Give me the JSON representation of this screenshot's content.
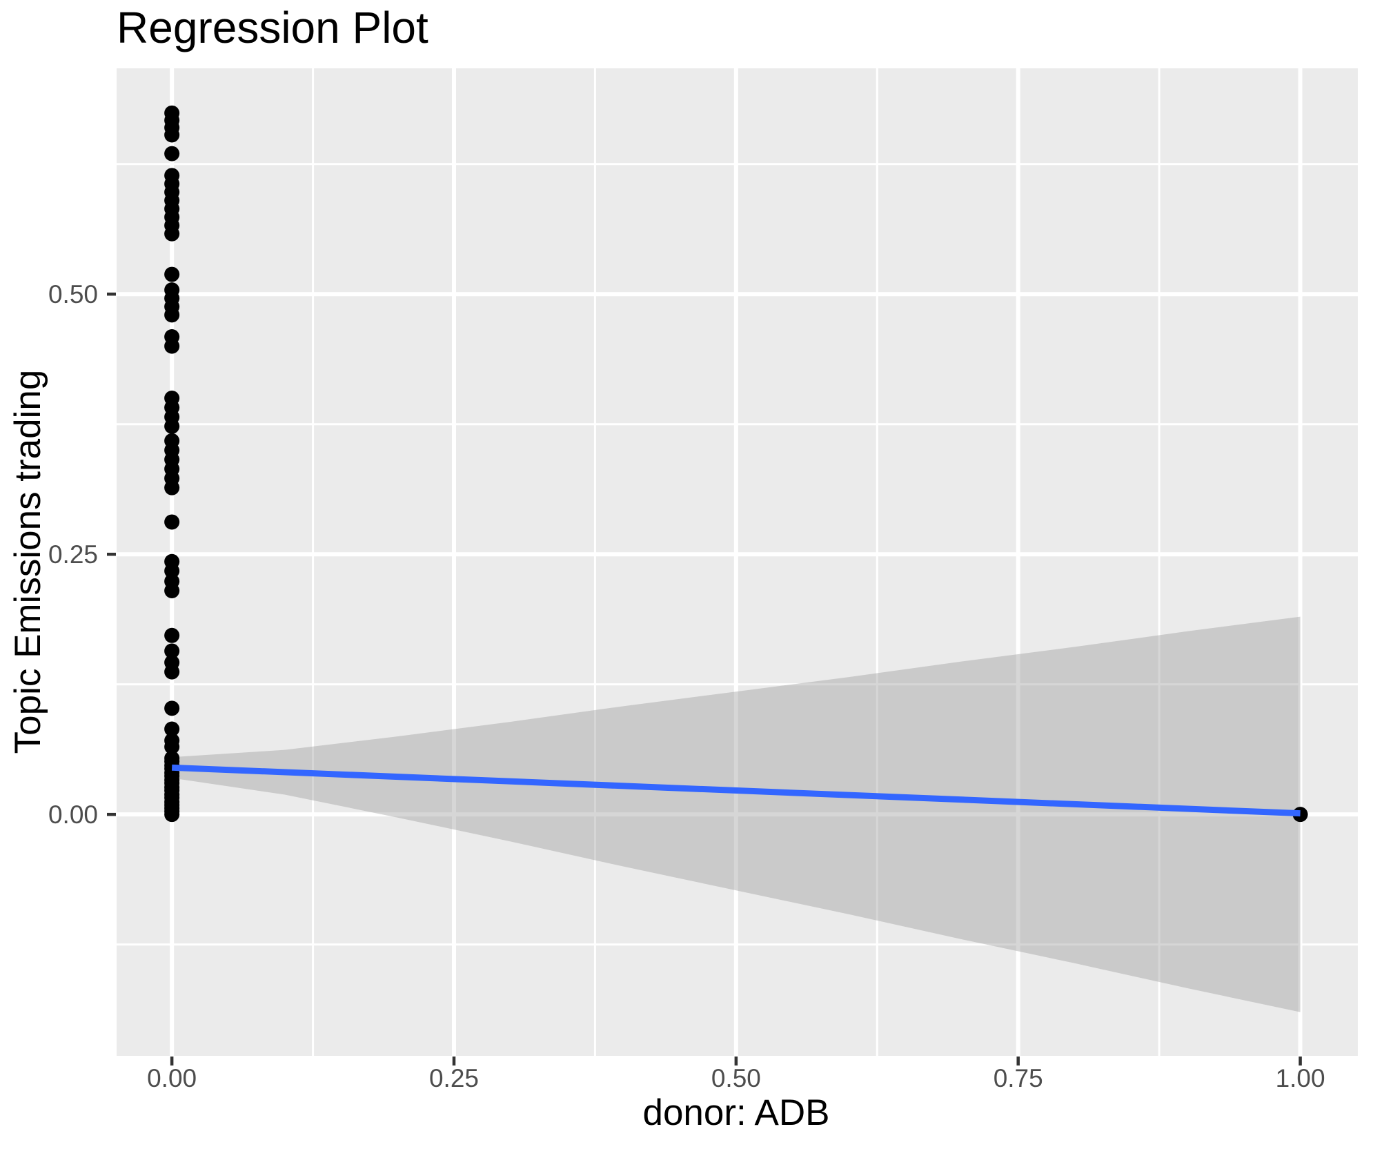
{
  "title": "Regression Plot",
  "axes": {
    "x_title": "donor: ADB",
    "y_title": "Topic Emissions trading"
  },
  "colors": {
    "page_bg": "#FFFFFF",
    "panel_bg": "#EBEBEB",
    "grid": "#FFFFFF",
    "tick_mark": "#333333",
    "tick_label": "#4D4D4D",
    "title": "#000000",
    "axis_title": "#000000",
    "smooth_line": "#3366FF",
    "ribbon": "#999999",
    "point": "#000000"
  },
  "chart_data": {
    "type": "scatter",
    "title": "Regression Plot",
    "xlabel": "donor: ADB",
    "ylabel": "Topic Emissions trading",
    "xlim": [
      -0.049,
      1.051
    ],
    "ylim": [
      -0.232,
      0.717
    ],
    "grid": true,
    "legend": false,
    "x_ticks": [
      {
        "value": 0.0,
        "label": "0.00"
      },
      {
        "value": 0.25,
        "label": "0.25"
      },
      {
        "value": 0.5,
        "label": "0.50"
      },
      {
        "value": 0.75,
        "label": "0.75"
      },
      {
        "value": 1.0,
        "label": "1.00"
      }
    ],
    "y_ticks": [
      {
        "value": 0.0,
        "label": "0.00"
      },
      {
        "value": 0.25,
        "label": "0.25"
      },
      {
        "value": 0.5,
        "label": "0.50"
      }
    ],
    "x_minor": [
      0.125,
      0.375,
      0.625,
      0.875
    ],
    "y_minor": [
      -0.125,
      0.125,
      0.375,
      0.625
    ],
    "series": [
      {
        "name": "observations",
        "type": "points",
        "color": "#000000",
        "radius": 11,
        "points": [
          [
            0,
            0.674
          ],
          [
            0,
            0.667
          ],
          [
            0,
            0.66
          ],
          [
            0,
            0.653
          ],
          [
            0,
            0.635
          ],
          [
            0,
            0.614
          ],
          [
            0,
            0.606
          ],
          [
            0,
            0.598
          ],
          [
            0,
            0.59
          ],
          [
            0,
            0.582
          ],
          [
            0,
            0.574
          ],
          [
            0,
            0.566
          ],
          [
            0,
            0.558
          ],
          [
            0,
            0.519
          ],
          [
            0,
            0.504
          ],
          [
            0,
            0.496
          ],
          [
            0,
            0.488
          ],
          [
            0,
            0.48
          ],
          [
            0,
            0.459
          ],
          [
            0,
            0.45
          ],
          [
            0,
            0.4
          ],
          [
            0,
            0.391
          ],
          [
            0,
            0.382
          ],
          [
            0,
            0.373
          ],
          [
            0,
            0.359
          ],
          [
            0,
            0.35
          ],
          [
            0,
            0.341
          ],
          [
            0,
            0.332
          ],
          [
            0,
            0.323
          ],
          [
            0,
            0.314
          ],
          [
            0,
            0.281
          ],
          [
            0,
            0.243
          ],
          [
            0,
            0.234
          ],
          [
            0,
            0.224
          ],
          [
            0,
            0.215
          ],
          [
            0,
            0.172
          ],
          [
            0,
            0.157
          ],
          [
            0,
            0.146
          ],
          [
            0,
            0.137
          ],
          [
            0,
            0.102
          ],
          [
            0,
            0.082
          ],
          [
            0,
            0.071
          ],
          [
            0,
            0.065
          ],
          [
            0,
            0.054
          ],
          [
            0,
            0.051
          ],
          [
            0,
            0.047
          ],
          [
            0,
            0.044
          ],
          [
            0,
            0.04
          ],
          [
            0,
            0.037
          ],
          [
            0,
            0.033
          ],
          [
            0,
            0.03
          ],
          [
            0,
            0.026
          ],
          [
            0,
            0.023
          ],
          [
            0,
            0.019
          ],
          [
            0,
            0.016
          ],
          [
            0,
            0.012
          ],
          [
            0,
            0.009
          ],
          [
            0,
            0.006
          ],
          [
            0,
            0.003
          ],
          [
            0,
            0.0
          ],
          [
            1,
            0.0
          ]
        ]
      },
      {
        "name": "confidence-band",
        "type": "ribbon",
        "color": "#999999",
        "opacity": 0.4,
        "x": [
          0.0,
          0.1,
          0.2,
          0.3,
          0.4,
          0.5,
          0.6,
          0.7,
          0.8,
          0.9,
          1.0
        ],
        "upper": [
          0.055,
          0.062,
          0.075,
          0.089,
          0.104,
          0.118,
          0.132,
          0.147,
          0.161,
          0.176,
          0.19
        ],
        "lower": [
          0.035,
          0.019,
          -0.003,
          -0.026,
          -0.05,
          -0.073,
          -0.096,
          -0.12,
          -0.143,
          -0.167,
          -0.19
        ]
      },
      {
        "name": "regression-line",
        "type": "line",
        "color": "#3366FF",
        "width": 9,
        "points": [
          [
            0,
            0.045
          ],
          [
            1,
            0.001
          ]
        ]
      }
    ]
  }
}
